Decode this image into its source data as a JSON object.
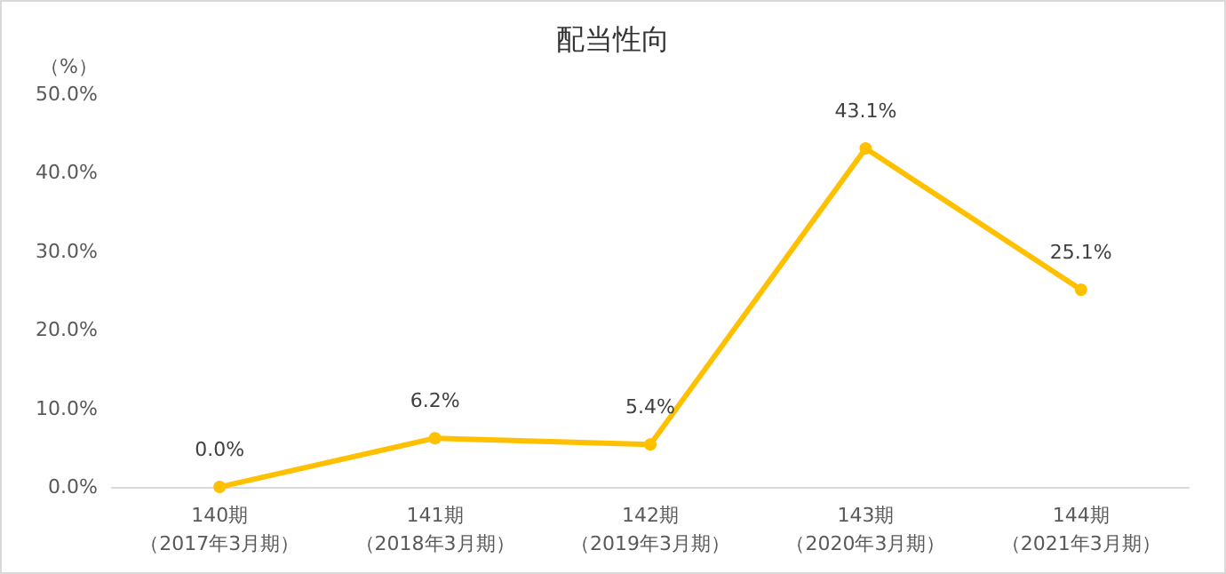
{
  "chart_data": {
    "type": "line",
    "title": "配当性向",
    "ylabel": "（%）",
    "categories": [
      "140期（2017年3月期）",
      "141期（2018年3月期）",
      "142期（2019年3月期）",
      "143期（2020年3月期）",
      "144期（2021年3月期）"
    ],
    "values": [
      0.0,
      6.2,
      5.4,
      43.1,
      25.1
    ],
    "value_labels": [
      "0.0%",
      "6.2%",
      "5.4%",
      "43.1%",
      "25.1%"
    ],
    "color": "#ffc000",
    "marker": "circle",
    "line_style": "solid",
    "grid": false,
    "ylim": [
      0,
      50
    ],
    "yticks": [
      {
        "value": 0,
        "label": "0.0%"
      },
      {
        "value": 10,
        "label": "10.0%"
      },
      {
        "value": 20,
        "label": "20.0%"
      },
      {
        "value": 30,
        "label": "30.0%"
      },
      {
        "value": 40,
        "label": "40.0%"
      },
      {
        "value": 50,
        "label": "50.0%"
      }
    ]
  }
}
